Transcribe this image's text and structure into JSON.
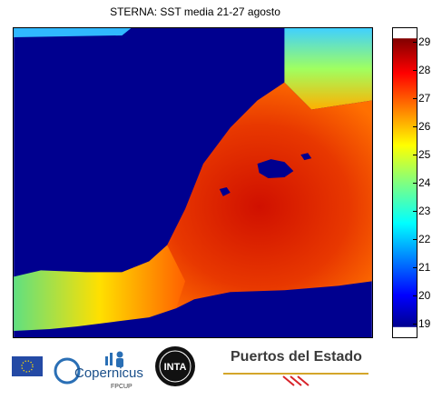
{
  "title": "STERNA: SST media 21-27 agosto",
  "map": {
    "colors": {
      "ocean_mask": "#00008f",
      "warm": "#e03000",
      "hot": "#c80000",
      "mid": "#ffb000",
      "cool": "#60e080"
    }
  },
  "colorbar": {
    "min": 18.5,
    "max": 29.5,
    "ticks": [
      "29",
      "28",
      "27",
      "26",
      "25",
      "24",
      "23",
      "22",
      "21",
      "20",
      "19"
    ],
    "colormap": "jet"
  },
  "logos": {
    "eu_flag": "eu-flag",
    "copernicus_label": "Copernicus",
    "copernicus_sub": "FPCUP",
    "inta_label": "INTA",
    "puertos_label": "Puertos del Estado"
  }
}
